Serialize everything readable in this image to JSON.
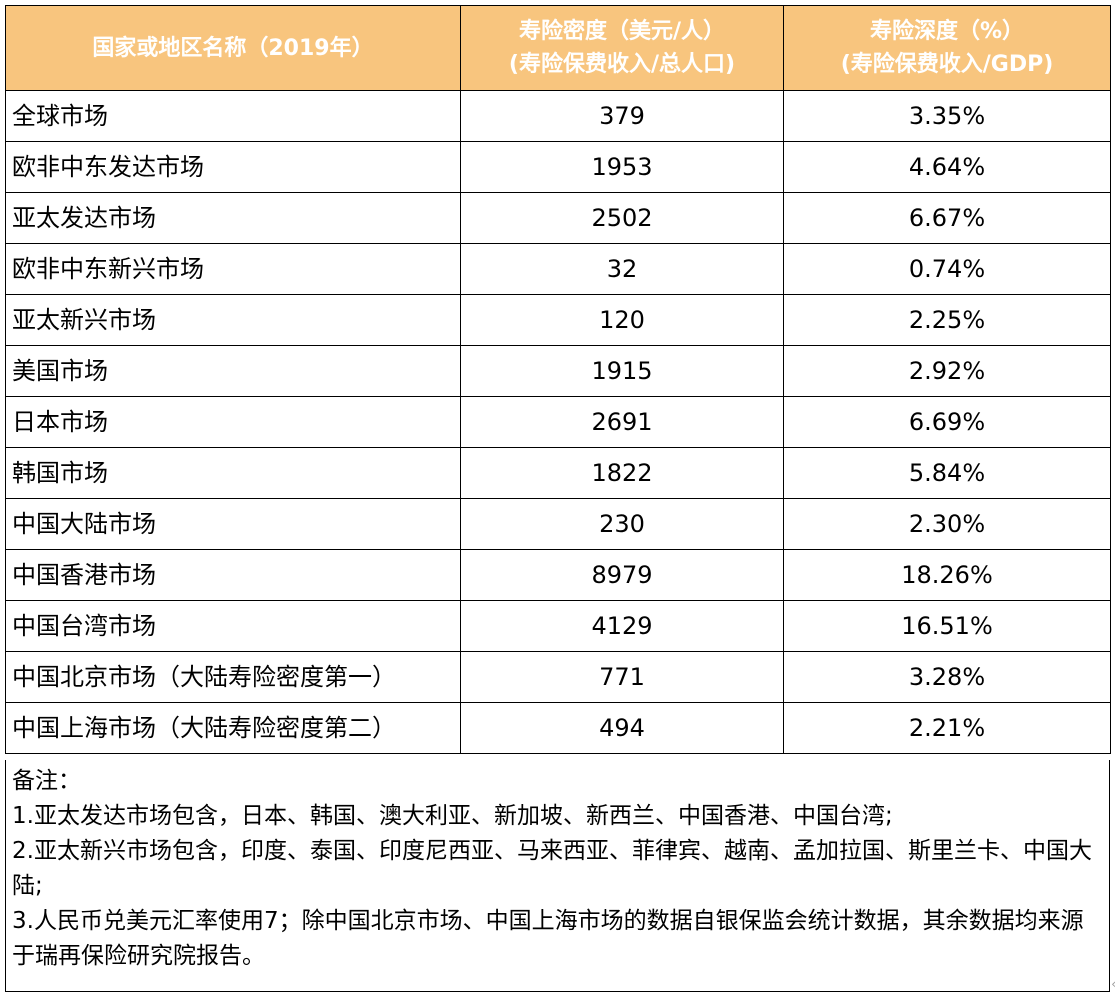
{
  "table": {
    "headers": [
      {
        "line1": "国家或地区名称（2019年）",
        "line2": ""
      },
      {
        "line1": "寿险密度（美元/人）",
        "line2": "(寿险保费收入/总人口)"
      },
      {
        "line1": "寿险深度（%）",
        "line2": "(寿险保费收入/GDP)"
      }
    ],
    "rows": [
      {
        "region": "全球市场",
        "density": "379",
        "depth": "3.35%"
      },
      {
        "region": "欧非中东发达市场",
        "density": "1953",
        "depth": "4.64%"
      },
      {
        "region": "亚太发达市场",
        "density": "2502",
        "depth": "6.67%"
      },
      {
        "region": "欧非中东新兴市场",
        "density": "32",
        "depth": "0.74%"
      },
      {
        "region": "亚太新兴市场",
        "density": "120",
        "depth": "2.25%"
      },
      {
        "region": "美国市场",
        "density": "1915",
        "depth": "2.92%"
      },
      {
        "region": "日本市场",
        "density": "2691",
        "depth": "6.69%"
      },
      {
        "region": "韩国市场",
        "density": "1822",
        "depth": "5.84%"
      },
      {
        "region": "中国大陆市场",
        "density": "230",
        "depth": "2.30%"
      },
      {
        "region": "中国香港市场",
        "density": "8979",
        "depth": "18.26%"
      },
      {
        "region": "中国台湾市场",
        "density": "4129",
        "depth": "16.51%"
      },
      {
        "region": "中国北京市场（大陆寿险密度第一）",
        "density": "771",
        "depth": "3.28%"
      },
      {
        "region": "中国上海市场（大陆寿险密度第二）",
        "density": "494",
        "depth": "2.21%"
      }
    ]
  },
  "notes": {
    "title": "备注：",
    "items": [
      "1.亚太发达市场包含，日本、韩国、澳大利亚、新加坡、新西兰、中国香港、中国台湾;",
      "2.亚太新兴市场包含，印度、泰国、印度尼西亚、马来西亚、菲律宾、越南、孟加拉国、斯里兰卡、中国大陆;",
      "3.人民币兑美元汇率使用7；除中国北京市场、中国上海市场的数据自银保监会统计数据，其余数据均来源于瑞再保险研究院报告。"
    ]
  },
  "colors": {
    "header_background": "#f8c57e",
    "header_text": "#ffffff",
    "border": "#000000"
  },
  "icons": {
    "scroll_arrow": "scroll-right-arrow-icon"
  }
}
